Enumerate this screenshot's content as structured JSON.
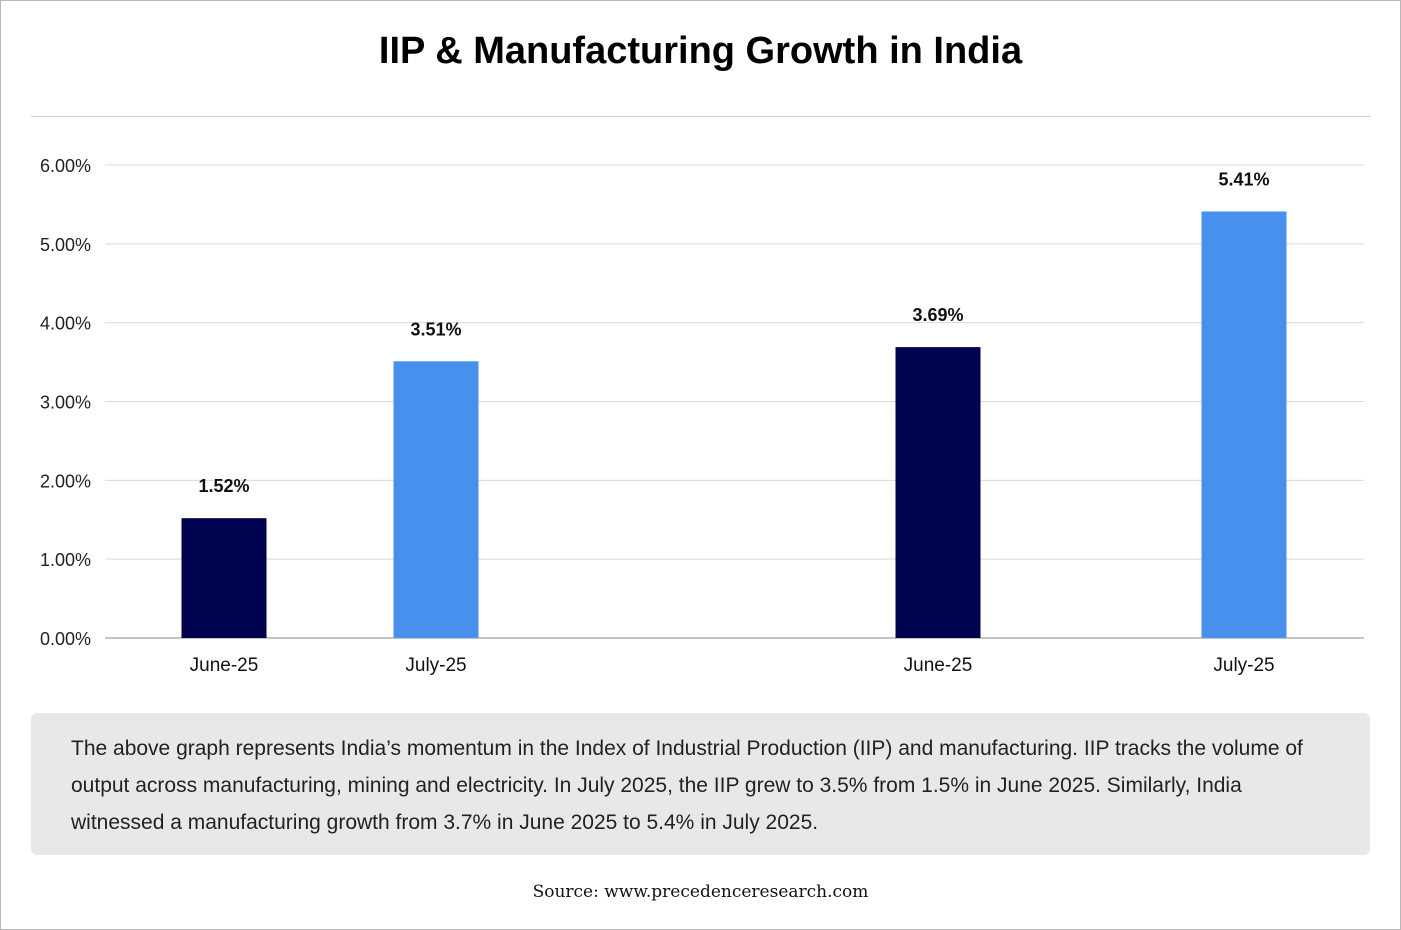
{
  "chart_data": {
    "type": "bar",
    "title": "IIP & Manufacturing Growth in India",
    "categories": [
      "June-25",
      "July-25",
      "June-25",
      "July-25"
    ],
    "values": [
      1.52,
      3.51,
      3.69,
      5.41
    ],
    "data_labels": [
      "1.52%",
      "3.51%",
      "3.69%",
      "5.41%"
    ],
    "bar_colors": [
      "#000450",
      "#4790EE",
      "#000450",
      "#4790EE"
    ],
    "ylim": [
      0,
      6
    ],
    "yticks": [
      "0.00%",
      "1.00%",
      "2.00%",
      "3.00%",
      "4.00%",
      "5.00%",
      "6.00%"
    ],
    "xlabel": "",
    "ylabel": "",
    "grid": true,
    "legend": "none"
  },
  "description": "The above graph represents India’s momentum in the Index of Industrial Production (IIP) and manufacturing. IIP tracks the volume of output across manufacturing, mining and electricity. In July 2025, the IIP grew to 3.5% from 1.5% in June 2025. Similarly, India witnessed a manufacturing growth from 3.7% in June 2025 to 5.4% in July 2025.",
  "source": "Source: www.precedenceresearch.com"
}
